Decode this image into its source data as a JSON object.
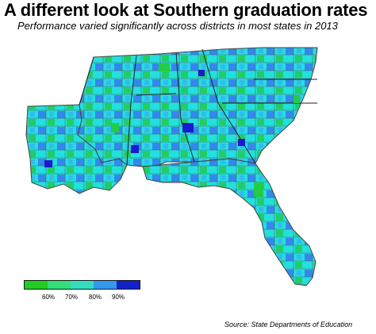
{
  "title": "A different look at Southern graduation rates",
  "subtitle": "Performance varied significantly across districts in most states in 2013",
  "source": "Source: State Departments of Education",
  "legend": {
    "colors": [
      "#22cc22",
      "#33dd77",
      "#33ddc0",
      "#3399ee",
      "#1122cc"
    ],
    "labels": [
      "60%",
      "70%",
      "80%",
      "90%"
    ]
  },
  "map_colors": {
    "green": "#22cc55",
    "cyan": "#22e0dd",
    "blue": "#3388ee",
    "dark_blue": "#1a1ad0",
    "border": "#555555"
  }
}
